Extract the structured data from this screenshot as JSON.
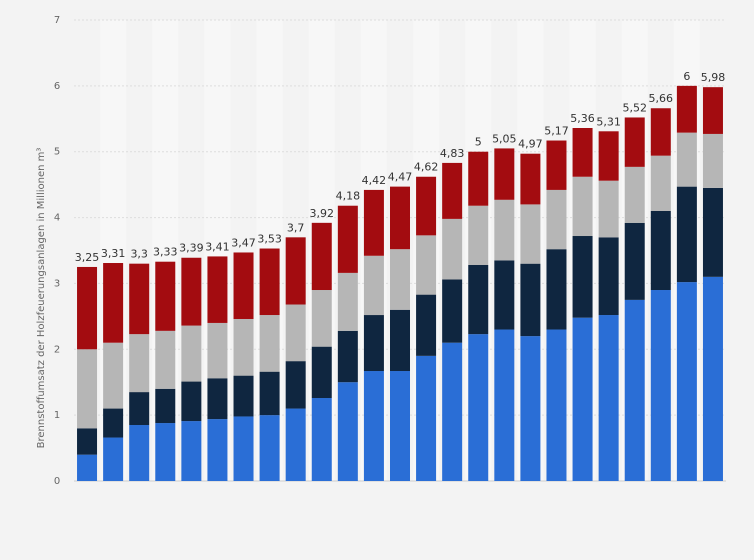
{
  "chart_data": {
    "type": "bar",
    "stacked": true,
    "ylabel": "Brennstoffumsatz der Holzfeuerungsanlagen in Millionen m³",
    "ylim": [
      0,
      7
    ],
    "yticks": [
      "0",
      "1",
      "2",
      "3",
      "4",
      "5",
      "6",
      "7"
    ],
    "grid": true,
    "colors": [
      "#2a6ed6",
      "#0f2640",
      "#b6b6b6",
      "#a30c10"
    ],
    "totals": [
      "3,25",
      "3,31",
      "3,3",
      "3,33",
      "3,39",
      "3,41",
      "3,47",
      "3,53",
      "3,7",
      "3,92",
      "4,18",
      "4,42",
      "4,47",
      "4,62",
      "4,83",
      "5",
      "5,05",
      "4,97",
      "5,17",
      "5,36",
      "5,31",
      "5,52",
      "5,66",
      "6",
      "5,98"
    ],
    "series": [
      {
        "values": [
          0.4,
          0.66,
          0.85,
          0.88,
          0.91,
          0.94,
          0.98,
          1.0,
          1.1,
          1.26,
          1.5,
          1.67,
          1.67,
          1.9,
          2.1,
          2.23,
          2.3,
          2.2,
          2.3,
          2.48,
          2.52,
          2.75,
          2.9,
          3.02,
          3.1
        ]
      },
      {
        "values": [
          0.4,
          0.44,
          0.5,
          0.52,
          0.6,
          0.62,
          0.62,
          0.66,
          0.72,
          0.78,
          0.78,
          0.85,
          0.93,
          0.93,
          0.96,
          1.05,
          1.05,
          1.1,
          1.22,
          1.24,
          1.18,
          1.17,
          1.2,
          1.45,
          1.35
        ]
      },
      {
        "values": [
          1.2,
          1.0,
          0.88,
          0.88,
          0.85,
          0.84,
          0.86,
          0.86,
          0.86,
          0.86,
          0.88,
          0.9,
          0.92,
          0.9,
          0.92,
          0.9,
          0.92,
          0.9,
          0.9,
          0.9,
          0.86,
          0.85,
          0.84,
          0.82,
          0.82
        ]
      },
      {
        "values": [
          1.25,
          1.21,
          1.07,
          1.05,
          1.03,
          1.01,
          1.01,
          1.01,
          1.02,
          1.02,
          1.02,
          1.0,
          0.95,
          0.89,
          0.85,
          0.82,
          0.78,
          0.77,
          0.75,
          0.74,
          0.75,
          0.75,
          0.72,
          0.71,
          0.71
        ]
      }
    ]
  }
}
